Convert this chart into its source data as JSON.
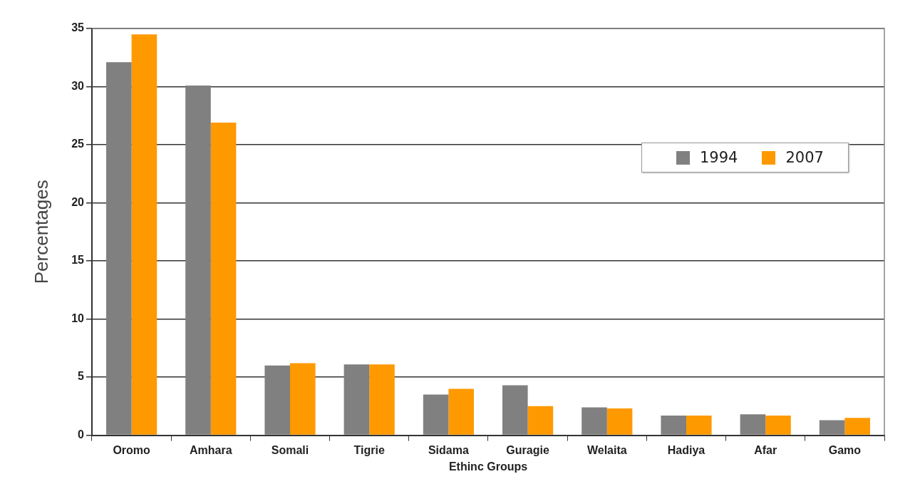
{
  "chart_data": {
    "type": "bar",
    "xlabel": "Ethinc Groups",
    "ylabel": "Percentages",
    "categories": [
      "Oromo",
      "Amhara",
      "Somali",
      "Tigrie",
      "Sidama",
      "Guragie",
      "Welaita",
      "Hadiya",
      "Afar",
      "Gamo"
    ],
    "series": [
      {
        "name": "1994",
        "color": "#808080",
        "values": [
          32.1,
          30.1,
          6.0,
          6.1,
          3.5,
          4.3,
          2.4,
          1.7,
          1.8,
          1.3
        ]
      },
      {
        "name": "2007",
        "color": "#ff9900",
        "values": [
          34.5,
          26.9,
          6.2,
          6.1,
          4.0,
          2.5,
          2.3,
          1.7,
          1.7,
          1.5
        ]
      }
    ],
    "ylim": [
      0,
      35
    ],
    "yticks": [
      0,
      5,
      10,
      15,
      20,
      25,
      30,
      35
    ],
    "grid": "y",
    "legend": "top right"
  }
}
